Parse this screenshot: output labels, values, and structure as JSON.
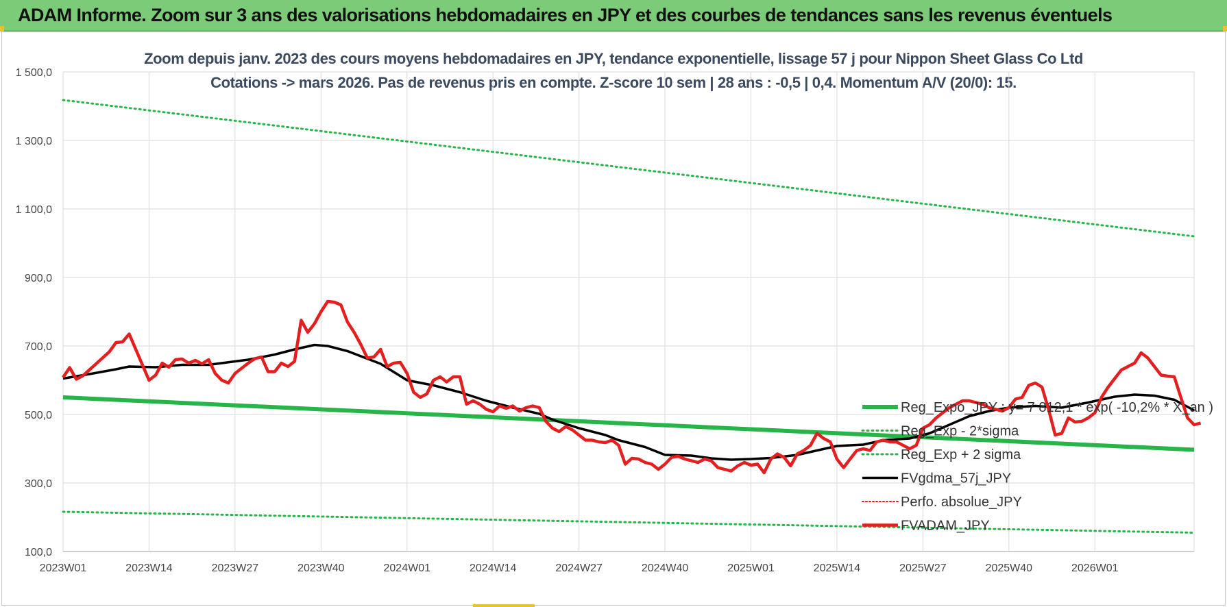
{
  "banner": {
    "title": "ADAM Informe. Zoom sur 3 ans des valorisations hebdomadaires en JPY et des courbes de tendances sans les revenus éventuels"
  },
  "chart_data": {
    "type": "line",
    "title_line1": "Zoom depuis janv. 2023 des cours moyens hebdomadaires en JPY, tendance exponentielle, lissage 57 j pour Nippon Sheet Glass Co Ltd",
    "title_line2": "Cotations -> mars 2026. Pas de revenus pris en compte. Z-score 10 sem | 28 ans : -0,5 | 0,4. Momentum A/V (20/0): 15.",
    "xlabel": "",
    "ylabel": "",
    "ylim": [
      100,
      1500
    ],
    "y_ticks": [
      "1 500,0",
      "1 300,0",
      "1 100,0",
      "900,0",
      "700,0",
      "500,0",
      "300,0",
      "100,0"
    ],
    "y_tick_values": [
      1500,
      1300,
      1100,
      900,
      700,
      500,
      300,
      100
    ],
    "x_ticks": [
      "2023W01",
      "2023W14",
      "2023W27",
      "2023W40",
      "2024W01",
      "2024W14",
      "2024W27",
      "2024W40",
      "2025W01",
      "2025W14",
      "2025W27",
      "2025W40",
      "2026W01"
    ],
    "x_tick_weeks": [
      0,
      13,
      26,
      39,
      52,
      65,
      78,
      91,
      104,
      117,
      130,
      143,
      156
    ],
    "x_range": [
      0,
      171
    ],
    "grid": true,
    "legend_position": "right",
    "series": [
      {
        "name": "Reg_Expo_JPY : y= 7 812,1 * exp( -10,2% * X_an )",
        "color": "#27b54a",
        "style": "solid",
        "width": 6,
        "points": [
          [
            0,
            550
          ],
          [
            171,
            397
          ]
        ]
      },
      {
        "name": "Reg_Exp - 2*sigma",
        "color": "#27b54a",
        "style": "dotted",
        "width": 3,
        "points": [
          [
            0,
            216
          ],
          [
            171,
            155
          ]
        ]
      },
      {
        "name": "Reg_Exp + 2 sigma",
        "color": "#27b54a",
        "style": "dotted",
        "width": 3,
        "points": [
          [
            0,
            1418
          ],
          [
            171,
            1020
          ]
        ]
      },
      {
        "name": "FVgdma_57j_JPY",
        "color": "#000000",
        "style": "solid",
        "width": 3.5,
        "points": [
          [
            0,
            605
          ],
          [
            4,
            618
          ],
          [
            8,
            632
          ],
          [
            10,
            640
          ],
          [
            14,
            638
          ],
          [
            18,
            645
          ],
          [
            22,
            645
          ],
          [
            24,
            650
          ],
          [
            28,
            660
          ],
          [
            32,
            675
          ],
          [
            35,
            690
          ],
          [
            38,
            703
          ],
          [
            40,
            700
          ],
          [
            43,
            685
          ],
          [
            48,
            648
          ],
          [
            52,
            600
          ],
          [
            56,
            585
          ],
          [
            60,
            565
          ],
          [
            64,
            540
          ],
          [
            68,
            520
          ],
          [
            72,
            502
          ],
          [
            74,
            485
          ],
          [
            78,
            460
          ],
          [
            82,
            440
          ],
          [
            84,
            425
          ],
          [
            88,
            405
          ],
          [
            91,
            382
          ],
          [
            95,
            380
          ],
          [
            98,
            372
          ],
          [
            101,
            368
          ],
          [
            104,
            370
          ],
          [
            107,
            373
          ],
          [
            111,
            382
          ],
          [
            114,
            395
          ],
          [
            117,
            408
          ],
          [
            121,
            412
          ],
          [
            124,
            425
          ],
          [
            128,
            430
          ],
          [
            131,
            445
          ],
          [
            134,
            470
          ],
          [
            137,
            495
          ],
          [
            140,
            510
          ],
          [
            143,
            520
          ],
          [
            147,
            525
          ],
          [
            151,
            520
          ],
          [
            155,
            535
          ],
          [
            159,
            552
          ],
          [
            162,
            558
          ],
          [
            165,
            555
          ],
          [
            168,
            543
          ],
          [
            171,
            512
          ]
        ]
      },
      {
        "name": "Perfo. absolue_JPY",
        "color": "#e02020",
        "style": "dotted",
        "width": 2,
        "points": []
      },
      {
        "name": "FVADAM_JPY",
        "color": "#e41f1f",
        "style": "solid",
        "width": 4.5,
        "points": [
          [
            0,
            608
          ],
          [
            1,
            637
          ],
          [
            2,
            603
          ],
          [
            3,
            613
          ],
          [
            5,
            648
          ],
          [
            7,
            683
          ],
          [
            8,
            710
          ],
          [
            9,
            712
          ],
          [
            10,
            735
          ],
          [
            11,
            690
          ],
          [
            13,
            600
          ],
          [
            14,
            615
          ],
          [
            15,
            650
          ],
          [
            16,
            638
          ],
          [
            17,
            660
          ],
          [
            18,
            662
          ],
          [
            19,
            650
          ],
          [
            20,
            658
          ],
          [
            21,
            648
          ],
          [
            22,
            660
          ],
          [
            23,
            620
          ],
          [
            24,
            600
          ],
          [
            25,
            592
          ],
          [
            26,
            620
          ],
          [
            28,
            650
          ],
          [
            29,
            663
          ],
          [
            30,
            668
          ],
          [
            31,
            625
          ],
          [
            32,
            625
          ],
          [
            33,
            650
          ],
          [
            34,
            640
          ],
          [
            35,
            655
          ],
          [
            36,
            775
          ],
          [
            37,
            740
          ],
          [
            38,
            765
          ],
          [
            39,
            800
          ],
          [
            40,
            830
          ],
          [
            41,
            828
          ],
          [
            42,
            820
          ],
          [
            43,
            770
          ],
          [
            44,
            740
          ],
          [
            45,
            705
          ],
          [
            46,
            665
          ],
          [
            47,
            668
          ],
          [
            48,
            690
          ],
          [
            49,
            640
          ],
          [
            50,
            650
          ],
          [
            51,
            652
          ],
          [
            52,
            620
          ],
          [
            53,
            565
          ],
          [
            54,
            550
          ],
          [
            55,
            560
          ],
          [
            56,
            600
          ],
          [
            57,
            610
          ],
          [
            58,
            595
          ],
          [
            59,
            610
          ],
          [
            60,
            610
          ],
          [
            61,
            530
          ],
          [
            62,
            540
          ],
          [
            63,
            530
          ],
          [
            64,
            515
          ],
          [
            65,
            508
          ],
          [
            66,
            525
          ],
          [
            67,
            518
          ],
          [
            68,
            525
          ],
          [
            69,
            510
          ],
          [
            70,
            520
          ],
          [
            71,
            525
          ],
          [
            72,
            520
          ],
          [
            73,
            480
          ],
          [
            74,
            460
          ],
          [
            75,
            450
          ],
          [
            76,
            465
          ],
          [
            77,
            455
          ],
          [
            78,
            440
          ],
          [
            79,
            425
          ],
          [
            80,
            425
          ],
          [
            81,
            420
          ],
          [
            82,
            418
          ],
          [
            83,
            425
          ],
          [
            84,
            410
          ],
          [
            85,
            355
          ],
          [
            86,
            372
          ],
          [
            87,
            370
          ],
          [
            88,
            360
          ],
          [
            89,
            355
          ],
          [
            90,
            340
          ],
          [
            91,
            355
          ],
          [
            92,
            375
          ],
          [
            93,
            378
          ],
          [
            94,
            370
          ],
          [
            95,
            365
          ],
          [
            96,
            360
          ],
          [
            97,
            370
          ],
          [
            98,
            365
          ],
          [
            99,
            345
          ],
          [
            100,
            340
          ],
          [
            101,
            335
          ],
          [
            102,
            350
          ],
          [
            103,
            360
          ],
          [
            104,
            352
          ],
          [
            105,
            355
          ],
          [
            106,
            330
          ],
          [
            107,
            370
          ],
          [
            108,
            385
          ],
          [
            109,
            375
          ],
          [
            110,
            350
          ],
          [
            111,
            385
          ],
          [
            112,
            395
          ],
          [
            113,
            410
          ],
          [
            114,
            445
          ],
          [
            115,
            430
          ],
          [
            116,
            420
          ],
          [
            117,
            370
          ],
          [
            118,
            345
          ],
          [
            119,
            370
          ],
          [
            120,
            395
          ],
          [
            121,
            400
          ],
          [
            122,
            395
          ],
          [
            123,
            420
          ],
          [
            124,
            425
          ],
          [
            125,
            420
          ],
          [
            126,
            420
          ],
          [
            127,
            410
          ],
          [
            128,
            400
          ],
          [
            129,
            410
          ],
          [
            130,
            460
          ],
          [
            131,
            470
          ],
          [
            132,
            490
          ],
          [
            133,
            505
          ],
          [
            134,
            520
          ],
          [
            135,
            530
          ],
          [
            136,
            540
          ],
          [
            137,
            540
          ],
          [
            138,
            535
          ],
          [
            139,
            530
          ],
          [
            140,
            520
          ],
          [
            141,
            515
          ],
          [
            142,
            510
          ],
          [
            143,
            520
          ],
          [
            144,
            545
          ],
          [
            145,
            550
          ],
          [
            146,
            585
          ],
          [
            147,
            592
          ],
          [
            148,
            580
          ],
          [
            149,
            515
          ],
          [
            150,
            440
          ],
          [
            151,
            445
          ],
          [
            152,
            490
          ],
          [
            153,
            478
          ],
          [
            154,
            480
          ],
          [
            155,
            490
          ],
          [
            156,
            505
          ],
          [
            157,
            550
          ],
          [
            158,
            580
          ],
          [
            159,
            605
          ],
          [
            160,
            630
          ],
          [
            161,
            640
          ],
          [
            162,
            650
          ],
          [
            163,
            680
          ],
          [
            164,
            665
          ],
          [
            165,
            640
          ],
          [
            166,
            615
          ],
          [
            167,
            612
          ],
          [
            168,
            610
          ],
          [
            169,
            550
          ],
          [
            170,
            490
          ],
          [
            171,
            470
          ],
          [
            172,
            475
          ]
        ]
      }
    ]
  }
}
